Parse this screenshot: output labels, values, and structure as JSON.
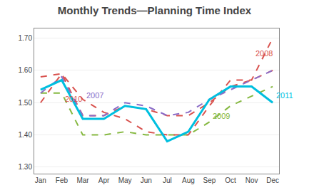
{
  "chart_data": {
    "type": "line",
    "title": "Monthly Trends—Planning Time Index",
    "categories": [
      "Jan",
      "Feb",
      "Mar",
      "Apr",
      "May",
      "Jun",
      "Jul",
      "Aug",
      "Sep",
      "Oct",
      "Nov",
      "Dec"
    ],
    "series": [
      {
        "name": "2009",
        "color": "#85B840",
        "line_style": "dashed",
        "values": [
          1.53,
          1.53,
          1.4,
          1.4,
          1.41,
          1.4,
          1.4,
          1.4,
          1.44,
          1.49,
          1.52,
          1.55
        ]
      },
      {
        "name": "2010",
        "color": "#D9534F",
        "line_style": "dashed",
        "values": [
          1.5,
          1.59,
          1.46,
          1.46,
          1.49,
          1.48,
          1.46,
          1.46,
          1.5,
          1.55,
          1.57,
          1.6
        ]
      },
      {
        "name": "2008",
        "color": "#D9534F",
        "line_style": "dashed",
        "values": [
          1.58,
          1.59,
          1.51,
          1.47,
          1.45,
          1.41,
          1.4,
          1.4,
          1.49,
          1.57,
          1.57,
          1.7
        ]
      },
      {
        "name": "2007",
        "color": "#8B6DC8",
        "line_style": "dashed",
        "values": [
          1.53,
          1.58,
          1.46,
          1.46,
          1.5,
          1.49,
          1.46,
          1.47,
          1.51,
          1.54,
          1.57,
          1.6
        ]
      },
      {
        "name": "2011",
        "color": "#00BFDF",
        "line_style": "solid",
        "values": [
          1.54,
          1.57,
          1.45,
          1.45,
          1.49,
          1.48,
          1.38,
          1.41,
          1.51,
          1.55,
          1.55,
          1.5
        ]
      }
    ],
    "annotations": [
      {
        "text": "2007",
        "x": "Mar",
        "y": 1.505,
        "color": "#8B6DC8"
      },
      {
        "text": "2008",
        "x": "Nov",
        "y": 1.635,
        "color": "#D9534F"
      },
      {
        "text": "2009",
        "x": "Sep",
        "y": 1.442,
        "color": "#85B840"
      },
      {
        "text": "2010",
        "x": "Feb",
        "y": 1.494,
        "color": "#D9534F"
      },
      {
        "text": "2011",
        "x": "Dec",
        "y": 1.505,
        "color": "#00BFDF"
      }
    ],
    "ylim": [
      1.28,
      1.73
    ],
    "yticks": [
      {
        "value": 1.3,
        "label": "1.30"
      },
      {
        "value": 1.4,
        "label": "1.40"
      },
      {
        "value": 1.5,
        "label": "1.50"
      },
      {
        "value": 1.6,
        "label": "1.60"
      },
      {
        "value": 1.7,
        "label": "1.70"
      }
    ],
    "grid": true
  }
}
